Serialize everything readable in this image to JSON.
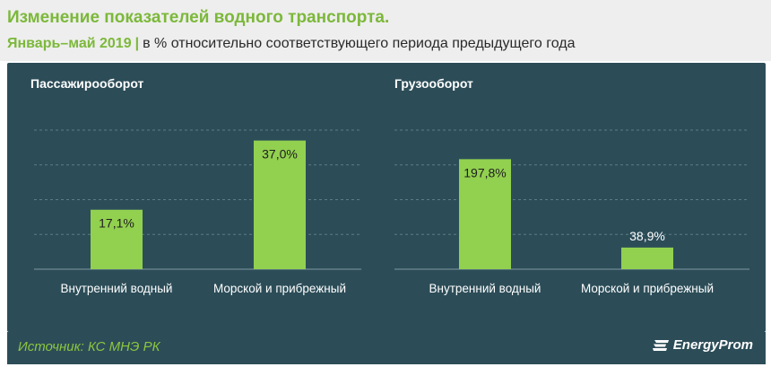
{
  "header": {
    "title": "Изменение показателей водного транспорта.",
    "period": "Январь–май 2019",
    "separator": "|",
    "subtitle": "в % относительно  соответствующего  периода предыдущего  года"
  },
  "footer": {
    "source": "Источник: КС МНЭ РК",
    "logo_text": "EnergyProm"
  },
  "colors": {
    "panel": "#2c4d58",
    "bar": "#92d050",
    "accent": "#7cb83a",
    "grid": "#5d7c86"
  },
  "chart_data": [
    {
      "type": "bar",
      "title": "Пассажирооборот",
      "categories": [
        "Внутренний водный",
        "Морской и прибрежный"
      ],
      "values": [
        17.1,
        37.0
      ],
      "value_labels": [
        "17,1%",
        "37,0%"
      ],
      "ylim": [
        0,
        40
      ],
      "grid": true,
      "legend": false
    },
    {
      "type": "bar",
      "title": "Грузооборот",
      "categories": [
        "Внутренний водный",
        "Морской и прибрежный"
      ],
      "values": [
        197.8,
        38.9
      ],
      "value_labels": [
        "197,8%",
        "38,9%"
      ],
      "ylim": [
        0,
        250
      ],
      "grid": true,
      "legend": false
    }
  ]
}
